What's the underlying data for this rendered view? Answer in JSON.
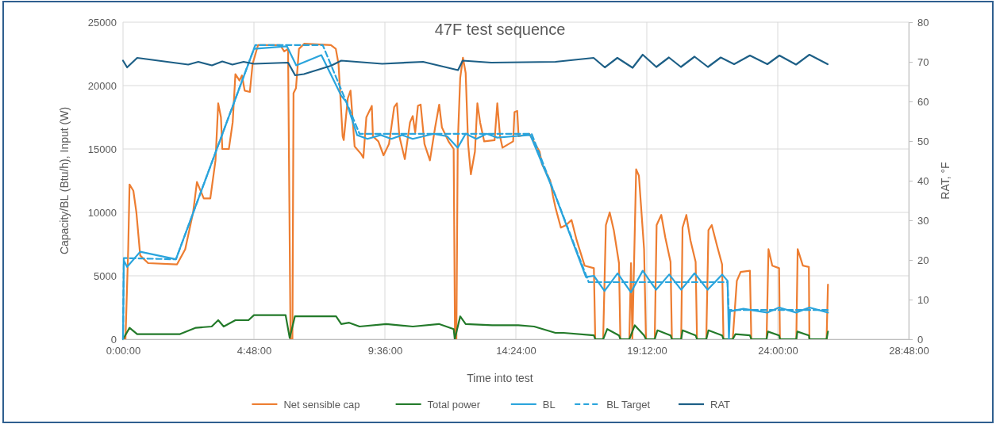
{
  "chart_data": {
    "type": "line",
    "title": "47F test sequence",
    "xlabel": "Time into test",
    "ylabel": "Capacity/BL (Btu/h), Input (W)",
    "y2label": "RAT, °F",
    "xlim": [
      0,
      28.8
    ],
    "xticks": [
      {
        "value": 0,
        "label": "0:00:00"
      },
      {
        "value": 4.8,
        "label": "4:48:00"
      },
      {
        "value": 9.6,
        "label": "9:36:00"
      },
      {
        "value": 14.4,
        "label": "14:24:00"
      },
      {
        "value": 19.2,
        "label": "19:12:00"
      },
      {
        "value": 24,
        "label": "24:00:00"
      },
      {
        "value": 28.8,
        "label": "28:48:00"
      }
    ],
    "ylim": [
      0,
      25000
    ],
    "yticks": [
      0,
      5000,
      10000,
      15000,
      20000,
      25000
    ],
    "y2lim": [
      0,
      80
    ],
    "y2ticks": [
      0,
      10,
      20,
      30,
      40,
      50,
      60,
      70,
      80
    ],
    "grid": true,
    "legend": "bottom",
    "series": [
      {
        "name": "Net sensible cap",
        "color": "#ed7d31",
        "line_style": "solid",
        "x": [
          0,
          0.09,
          0.19,
          0.24,
          0.38,
          0.49,
          0.63,
          0.92,
          1.98,
          2.28,
          2.57,
          2.71,
          2.96,
          3.2,
          3.39,
          3.49,
          3.59,
          3.64,
          3.88,
          4.02,
          4.12,
          4.27,
          4.36,
          4.46,
          4.65,
          4.75,
          4.95,
          5.76,
          5.91,
          6.05,
          6.14,
          6.21,
          6.25,
          6.34,
          6.45,
          6.64,
          7.62,
          7.8,
          7.9,
          8.05,
          8.09,
          8.24,
          8.34,
          8.49,
          8.73,
          8.81,
          8.92,
          9.12,
          9.16,
          9.36,
          9.55,
          9.75,
          9.94,
          10.04,
          10.13,
          10.33,
          10.52,
          10.62,
          10.71,
          10.81,
          10.91,
          11.05,
          11.25,
          11.44,
          11.59,
          11.69,
          11.93,
          12.12,
          12.17,
          12.22,
          12.27,
          12.36,
          12.46,
          12.56,
          12.65,
          12.75,
          12.9,
          12.99,
          13.09,
          13.24,
          13.62,
          13.72,
          13.82,
          13.91,
          14.3,
          14.35,
          14.45,
          14.5,
          14.89,
          15.27,
          15.36,
          15.66,
          15.76,
          15.85,
          16.05,
          16.24,
          16.44,
          16.63,
          16.92,
          17.26,
          17.31,
          17.6,
          17.7,
          17.84,
          17.99,
          18.18,
          18.23,
          18.56,
          18.62,
          18.67,
          18.81,
          18.91,
          19.1,
          19.17,
          19.49,
          19.56,
          19.73,
          19.88,
          20.07,
          20.12,
          20.46,
          20.51,
          20.65,
          20.8,
          20.99,
          21.04,
          21.38,
          21.46,
          21.58,
          21.77,
          21.96,
          22.01,
          22.35,
          22.5,
          22.64,
          22.98,
          23.03,
          23.59,
          23.66,
          23.8,
          24.05,
          24.08,
          24.68,
          24.73,
          24.92,
          25.14,
          25.16,
          25.79,
          25.84
        ],
        "values": [
          0,
          0,
          7100,
          12200,
          11700,
          10000,
          6600,
          6000,
          5900,
          7100,
          10000,
          12400,
          11100,
          11100,
          14100,
          18600,
          17500,
          15000,
          15000,
          17100,
          20900,
          20400,
          20800,
          19600,
          19500,
          21700,
          23200,
          23200,
          22700,
          22900,
          0,
          0,
          19400,
          19800,
          22900,
          23300,
          23200,
          22900,
          21700,
          16000,
          15700,
          19000,
          19600,
          15200,
          14600,
          14300,
          17500,
          18400,
          16000,
          15600,
          14500,
          15400,
          18300,
          18600,
          16000,
          14200,
          17100,
          17600,
          16300,
          18400,
          18500,
          15400,
          14100,
          16700,
          18500,
          16700,
          15600,
          15000,
          0,
          0,
          15400,
          20600,
          22200,
          21000,
          15400,
          13000,
          14800,
          18600,
          17100,
          15600,
          15700,
          18600,
          16000,
          15100,
          15600,
          17900,
          18000,
          16000,
          16200,
          14800,
          13800,
          12500,
          11300,
          10400,
          8800,
          9000,
          9400,
          7800,
          5800,
          5600,
          0,
          0,
          9000,
          10000,
          8600,
          6000,
          0,
          0,
          6000,
          0,
          13400,
          12900,
          7100,
          0,
          0,
          9000,
          9800,
          8000,
          6100,
          0,
          0,
          8800,
          9800,
          7800,
          6100,
          0,
          0,
          8600,
          9000,
          7400,
          5900,
          0,
          0,
          4600,
          5300,
          5400,
          0,
          0,
          7100,
          5800,
          5600,
          0,
          0,
          7100,
          5800,
          5700,
          0,
          0,
          4300
        ]
      },
      {
        "name": "Total power",
        "color": "#237a2a",
        "line_style": "solid",
        "x": [
          0,
          0.24,
          0.52,
          2.09,
          2.67,
          3.25,
          3.49,
          3.69,
          4.12,
          4.6,
          4.8,
          5.96,
          6.11,
          6.3,
          7.81,
          8.0,
          8.29,
          8.67,
          9.65,
          10.62,
          11.58,
          12.12,
          12.16,
          12.36,
          12.56,
          13.53,
          14.49,
          15.07,
          15.85,
          16.15,
          17.26,
          17.31,
          17.6,
          17.75,
          18.18,
          18.23,
          18.56,
          18.76,
          19.1,
          19.17,
          19.49,
          19.59,
          20.07,
          20.12,
          20.46,
          20.51,
          20.99,
          21.04,
          21.38,
          21.46,
          21.96,
          22.01,
          22.35,
          22.45,
          22.98,
          23.03,
          23.59,
          23.64,
          24.05,
          24.08,
          24.68,
          24.72,
          25.14,
          25.16,
          25.79,
          25.84
        ],
        "values": [
          0,
          900,
          400,
          400,
          900,
          1000,
          1500,
          1000,
          1500,
          1500,
          1900,
          1900,
          100,
          1800,
          1800,
          1200,
          1300,
          1000,
          1200,
          1000,
          1200,
          800,
          0,
          1800,
          1200,
          1100,
          1100,
          1000,
          500,
          500,
          300,
          0,
          0,
          800,
          300,
          0,
          0,
          1100,
          300,
          0,
          0,
          700,
          300,
          0,
          0,
          700,
          300,
          0,
          0,
          700,
          300,
          0,
          0,
          400,
          300,
          0,
          0,
          600,
          300,
          0,
          0,
          600,
          300,
          0,
          0,
          600
        ]
      },
      {
        "name": "BL",
        "color": "#2aa4dc",
        "line_style": "solid",
        "x": [
          0,
          0.03,
          0.15,
          0.63,
          1.94,
          4.8,
          6.01,
          6.35,
          7.27,
          8.0,
          8.19,
          8.58,
          8.96,
          9.45,
          9.84,
          10.23,
          10.62,
          11.4,
          11.88,
          12.27,
          12.56,
          12.95,
          13.33,
          13.72,
          14.3,
          14.93,
          15.85,
          16.97,
          17.26,
          17.65,
          18.13,
          18.62,
          19.05,
          19.54,
          20.02,
          20.46,
          20.95,
          21.43,
          21.96,
          22.16,
          22.21,
          22.25,
          22.74,
          23.61,
          24.05,
          24.67,
          25.16,
          25.84
        ],
        "values": [
          0,
          6200,
          5700,
          6900,
          6300,
          22900,
          23100,
          21600,
          22400,
          19200,
          18700,
          16100,
          15800,
          16100,
          15800,
          16100,
          15800,
          16200,
          16000,
          15100,
          16200,
          15800,
          16200,
          15900,
          16000,
          16100,
          11300,
          4900,
          5000,
          3800,
          5200,
          3700,
          5400,
          3900,
          5100,
          3900,
          5200,
          3900,
          5100,
          4600,
          0,
          2200,
          2400,
          2100,
          2500,
          2100,
          2500,
          2100
        ]
      },
      {
        "name": "BL Target",
        "color": "#2aa4dc",
        "line_style": "dashed",
        "x": [
          0,
          0.03,
          1.94,
          4.85,
          7.32,
          8.67,
          14.98,
          17.07,
          22.16,
          22.2,
          25.84
        ],
        "values": [
          0,
          6400,
          6300,
          23200,
          23200,
          16200,
          16200,
          4500,
          4500,
          2300,
          2300
        ]
      },
      {
        "name": "RAT",
        "color": "#1d5f86",
        "line_style": "solid",
        "axis": "y2",
        "x": [
          0,
          0.15,
          0.52,
          2.39,
          2.76,
          3.26,
          3.64,
          4.01,
          4.42,
          4.8,
          6.05,
          6.31,
          6.63,
          7.62,
          8.0,
          9.5,
          11,
          12.28,
          12.45,
          13.5,
          15.85,
          17.25,
          17.66,
          18.12,
          18.68,
          19.05,
          19.55,
          20.01,
          20.45,
          20.95,
          21.44,
          21.91,
          22.4,
          22.98,
          23.62,
          24.06,
          24.67,
          25.16,
          25.83
        ],
        "values": [
          70.3,
          68.6,
          71,
          69.3,
          70,
          69.1,
          70.1,
          69.3,
          70,
          69.5,
          69.8,
          66.6,
          66.9,
          69,
          70.3,
          69.5,
          70,
          67.9,
          70.3,
          69.8,
          70,
          71,
          68.6,
          71,
          68.5,
          71.8,
          68.7,
          71.1,
          68.7,
          71.3,
          68.7,
          71.1,
          69.4,
          71.6,
          69.4,
          71.6,
          69.3,
          71.8,
          69.4
        ]
      }
    ]
  }
}
